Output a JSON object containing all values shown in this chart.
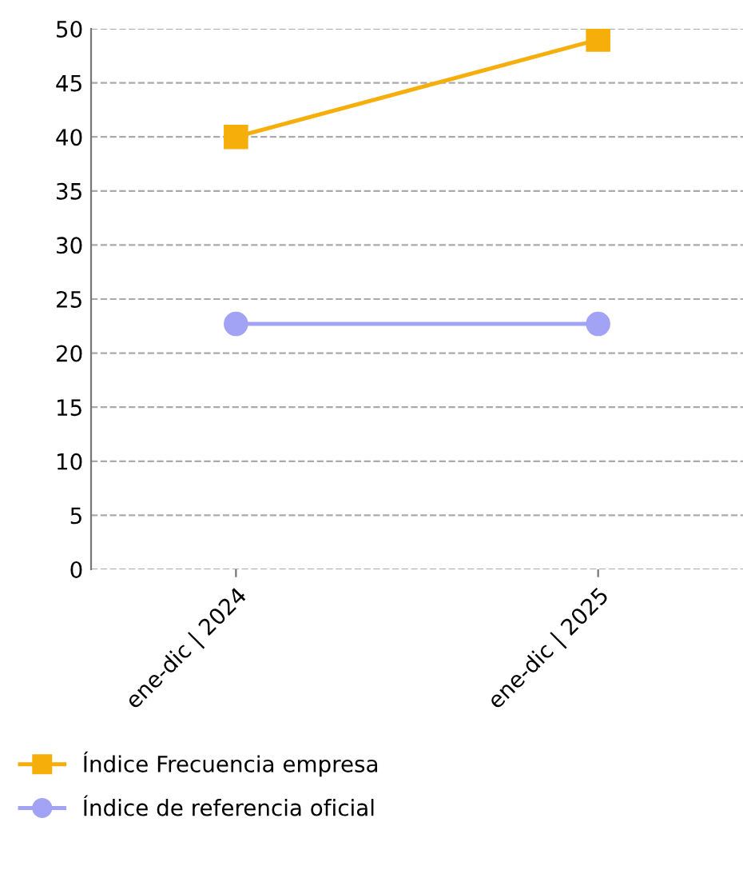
{
  "chart_data": {
    "type": "line",
    "categories": [
      "ene-dic | 2024",
      "ene-dic | 2025"
    ],
    "series": [
      {
        "name": "Índice Frecuencia empresa",
        "color": "#f5ae0a",
        "marker": "square",
        "values": [
          40,
          49
        ]
      },
      {
        "name": "Índice de referencia oficial",
        "color": "#a3a3f5",
        "marker": "circle",
        "values": [
          22.7,
          22.7
        ]
      }
    ],
    "ylim": [
      0,
      50
    ],
    "yticks": [
      0,
      5,
      10,
      15,
      20,
      25,
      30,
      35,
      40,
      45,
      50
    ],
    "grid": "y",
    "legend": "bottom",
    "line_style": "solid"
  }
}
